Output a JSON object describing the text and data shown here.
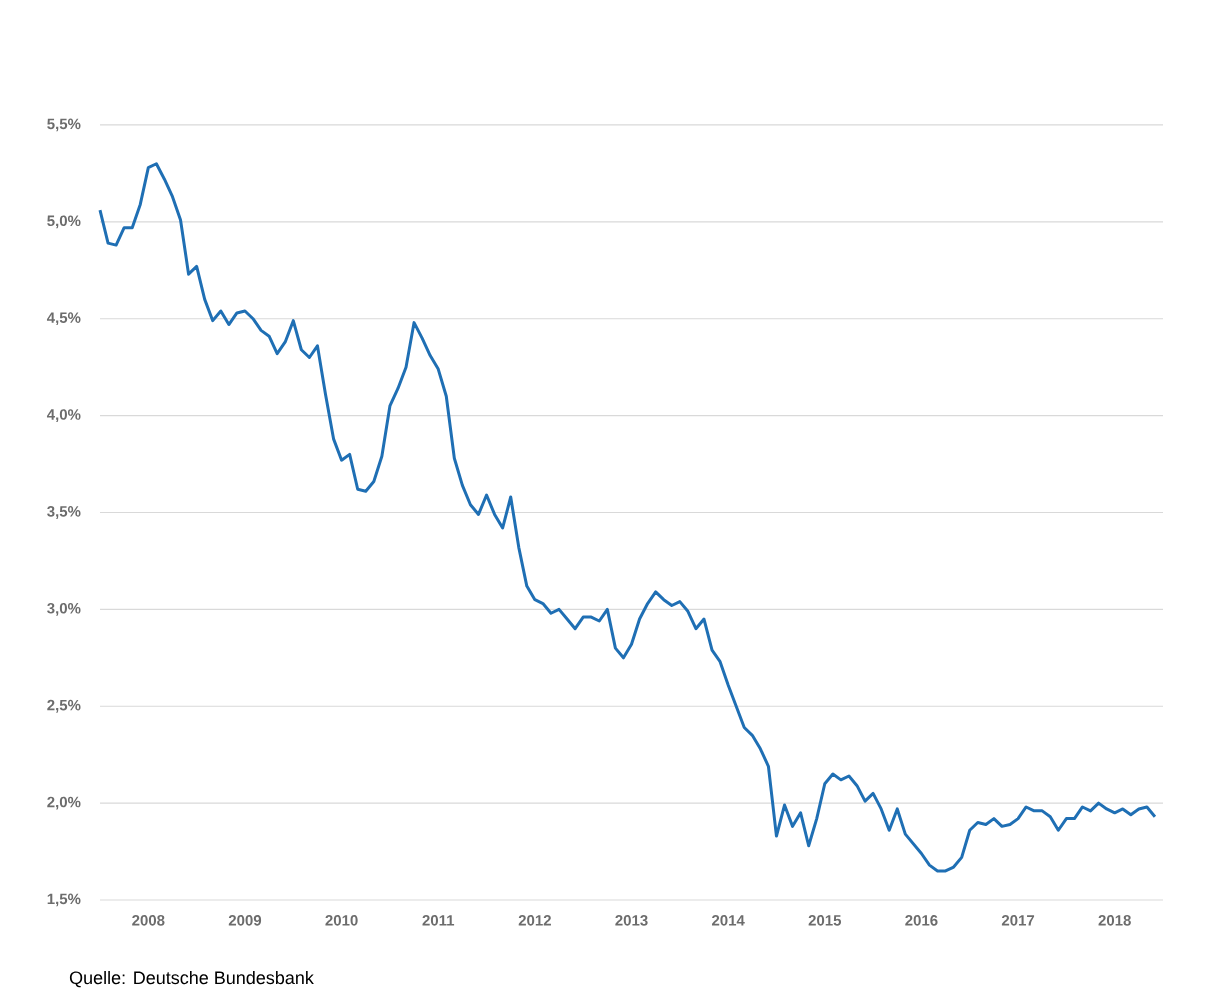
{
  "chart_data": {
    "type": "line",
    "x": [
      "2008-01",
      "2008-02",
      "2008-03",
      "2008-04",
      "2008-05",
      "2008-06",
      "2008-07",
      "2008-08",
      "2008-09",
      "2008-10",
      "2008-11",
      "2008-12",
      "2009-01",
      "2009-02",
      "2009-03",
      "2009-04",
      "2009-05",
      "2009-06",
      "2009-07",
      "2009-08",
      "2009-09",
      "2009-10",
      "2009-11",
      "2009-12",
      "2010-01",
      "2010-02",
      "2010-03",
      "2010-04",
      "2010-05",
      "2010-06",
      "2010-07",
      "2010-08",
      "2010-09",
      "2010-10",
      "2010-11",
      "2010-12",
      "2011-01",
      "2011-02",
      "2011-03",
      "2011-04",
      "2011-05",
      "2011-06",
      "2011-07",
      "2011-08",
      "2011-09",
      "2011-10",
      "2011-11",
      "2011-12",
      "2012-01",
      "2012-02",
      "2012-03",
      "2012-04",
      "2012-05",
      "2012-06",
      "2012-07",
      "2012-08",
      "2012-09",
      "2012-10",
      "2012-11",
      "2012-12",
      "2013-01",
      "2013-02",
      "2013-03",
      "2013-04",
      "2013-05",
      "2013-06",
      "2013-07",
      "2013-08",
      "2013-09",
      "2013-10",
      "2013-11",
      "2013-12",
      "2014-01",
      "2014-02",
      "2014-03",
      "2014-04",
      "2014-05",
      "2014-06",
      "2014-07",
      "2014-08",
      "2014-09",
      "2014-10",
      "2014-11",
      "2014-12",
      "2015-01",
      "2015-02",
      "2015-03",
      "2015-04",
      "2015-05",
      "2015-06",
      "2015-07",
      "2015-08",
      "2015-09",
      "2015-10",
      "2015-11",
      "2015-12",
      "2016-01",
      "2016-02",
      "2016-03",
      "2016-04",
      "2016-05",
      "2016-06",
      "2016-07",
      "2016-08",
      "2016-09",
      "2016-10",
      "2016-11",
      "2016-12",
      "2017-01",
      "2017-02",
      "2017-03",
      "2017-04",
      "2017-05",
      "2017-06",
      "2017-07",
      "2017-08",
      "2017-09",
      "2017-10",
      "2017-11",
      "2017-12",
      "2018-01",
      "2018-02",
      "2018-03",
      "2018-04",
      "2018-05",
      "2018-06",
      "2018-07",
      "2018-08",
      "2018-09",
      "2018-10",
      "2018-11",
      "2018-12"
    ],
    "series": [
      {
        "color": "#1f6fb4",
        "values": [
          5.06,
          4.89,
          4.88,
          4.97,
          4.97,
          5.09,
          5.28,
          5.3,
          5.22,
          5.13,
          5.01,
          4.73,
          4.77,
          4.6,
          4.49,
          4.54,
          4.47,
          4.53,
          4.54,
          4.5,
          4.44,
          4.41,
          4.32,
          4.38,
          4.49,
          4.34,
          4.3,
          4.36,
          4.11,
          3.88,
          3.77,
          3.8,
          3.62,
          3.61,
          3.66,
          3.79,
          4.05,
          4.14,
          4.25,
          4.48,
          4.4,
          4.31,
          4.24,
          4.1,
          3.78,
          3.64,
          3.54,
          3.49,
          3.59,
          3.49,
          3.42,
          3.58,
          3.32,
          3.12,
          3.05,
          3.03,
          2.98,
          3.0,
          2.95,
          2.9,
          2.96,
          2.96,
          2.94,
          3.0,
          2.8,
          2.75,
          2.82,
          2.95,
          3.03,
          3.09,
          3.05,
          3.02,
          3.04,
          2.99,
          2.9,
          2.95,
          2.79,
          2.73,
          2.61,
          2.5,
          2.39,
          2.35,
          2.28,
          2.19,
          1.83,
          1.99,
          1.88,
          1.95,
          1.78,
          1.92,
          2.1,
          2.15,
          2.12,
          2.14,
          2.09,
          2.01,
          2.05,
          1.97,
          1.86,
          1.97,
          1.84,
          1.79,
          1.74,
          1.68,
          1.65,
          1.65,
          1.67,
          1.72,
          1.86,
          1.9,
          1.89,
          1.92,
          1.88,
          1.89,
          1.92,
          1.98,
          1.96,
          1.96,
          1.93,
          1.86,
          1.92,
          1.92,
          1.98,
          1.96,
          2.0,
          1.97,
          1.95,
          1.97,
          1.94,
          1.97,
          1.98,
          1.93
        ]
      }
    ],
    "xlim": [
      "2008-01",
      "2019-01"
    ],
    "xticks": [
      {
        "value": "2008-07",
        "label": "2008"
      },
      {
        "value": "2009-07",
        "label": "2009"
      },
      {
        "value": "2010-07",
        "label": "2010"
      },
      {
        "value": "2011-07",
        "label": "2011"
      },
      {
        "value": "2012-07",
        "label": "2012"
      },
      {
        "value": "2013-07",
        "label": "2013"
      },
      {
        "value": "2014-07",
        "label": "2014"
      },
      {
        "value": "2015-07",
        "label": "2015"
      },
      {
        "value": "2016-07",
        "label": "2016"
      },
      {
        "value": "2017-07",
        "label": "2017"
      },
      {
        "value": "2018-07",
        "label": "2018"
      }
    ],
    "ylim": [
      1.5,
      5.5
    ],
    "yticks": [
      {
        "value": 1.5,
        "label": "1,5%"
      },
      {
        "value": 2.0,
        "label": "2,0%"
      },
      {
        "value": 2.5,
        "label": "2,5%"
      },
      {
        "value": 3.0,
        "label": "3,0%"
      },
      {
        "value": 3.5,
        "label": "3,5%"
      },
      {
        "value": 4.0,
        "label": "4,0%"
      },
      {
        "value": 4.5,
        "label": "4,5%"
      },
      {
        "value": 5.0,
        "label": "5,0%"
      },
      {
        "value": 5.5,
        "label": "5,5%"
      }
    ],
    "grid": "y",
    "marker": "none",
    "line_style": "solid",
    "annotations": [
      "Quelle: Deutsche Bundesbank"
    ]
  }
}
